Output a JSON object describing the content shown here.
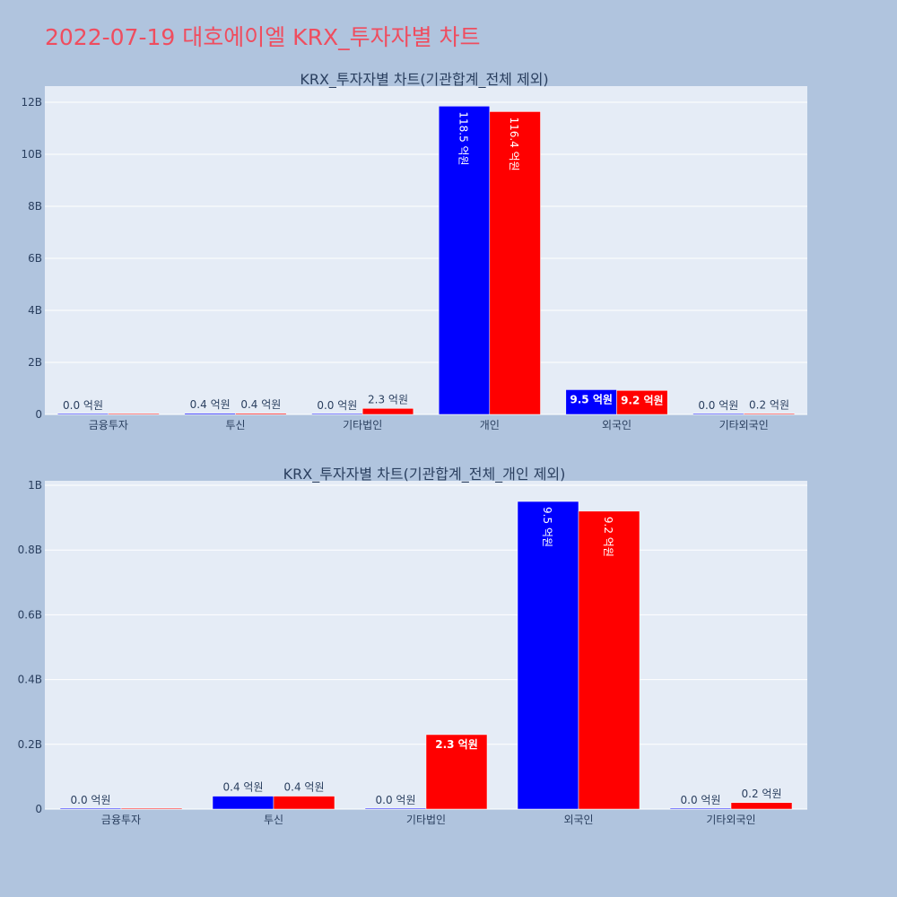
{
  "page": {
    "title": "2022-07-19 대호에이엘 KRX_투자자별 차트"
  },
  "chart_data": [
    {
      "type": "bar",
      "title": "KRX_투자자별 차트(기관합계_전체 제외)",
      "categories": [
        "금융투자",
        "투신",
        "기타법인",
        "개인",
        "외국인",
        "기타외국인"
      ],
      "series": [
        {
          "color": "#0000ff",
          "values": [
            0.0,
            40000000,
            0.0,
            11850000000,
            950000000,
            0.0
          ],
          "labels": [
            "0.0 억원",
            "0.4 억원",
            "0.0 억원",
            "118.5 억원",
            "9.5 억원",
            "0.0 억원"
          ]
        },
        {
          "color": "#ff0000",
          "values": [
            0.0,
            40000000,
            230000000,
            11640000000,
            920000000,
            20000000
          ],
          "labels": [
            "",
            "0.4 억원",
            "2.3 억원",
            "116.4 억원",
            "9.2 억원",
            "0.2 억원"
          ]
        }
      ],
      "y_ticks": [
        0,
        2000000000,
        4000000000,
        6000000000,
        8000000000,
        10000000000,
        12000000000
      ],
      "y_tick_labels": [
        "0",
        "2B",
        "4B",
        "6B",
        "8B",
        "10B",
        "12B"
      ],
      "ylim": [
        0,
        12000000000
      ],
      "grid": true
    },
    {
      "type": "bar",
      "title": "KRX_투자자별 차트(기관합계_전체_개인 제외)",
      "categories": [
        "금융투자",
        "투신",
        "기타법인",
        "외국인",
        "기타외국인"
      ],
      "series": [
        {
          "color": "#0000ff",
          "values": [
            0.0,
            40000000,
            0.0,
            950000000,
            0.0
          ],
          "labels": [
            "0.0 억원",
            "0.4 억원",
            "0.0 억원",
            "9.5 억원",
            "0.0 억원"
          ]
        },
        {
          "color": "#ff0000",
          "values": [
            0.0,
            40000000,
            230000000,
            920000000,
            20000000
          ],
          "labels": [
            "",
            "0.4 억원",
            "2.3 억원",
            "9.2 억원",
            "0.2 억원"
          ]
        }
      ],
      "y_ticks": [
        0,
        200000000,
        400000000,
        600000000,
        800000000,
        1000000000
      ],
      "y_tick_labels": [
        "0",
        "0.2B",
        "0.4B",
        "0.6B",
        "0.8B",
        "1B"
      ],
      "ylim": [
        0,
        1000000000
      ],
      "grid": true
    }
  ]
}
